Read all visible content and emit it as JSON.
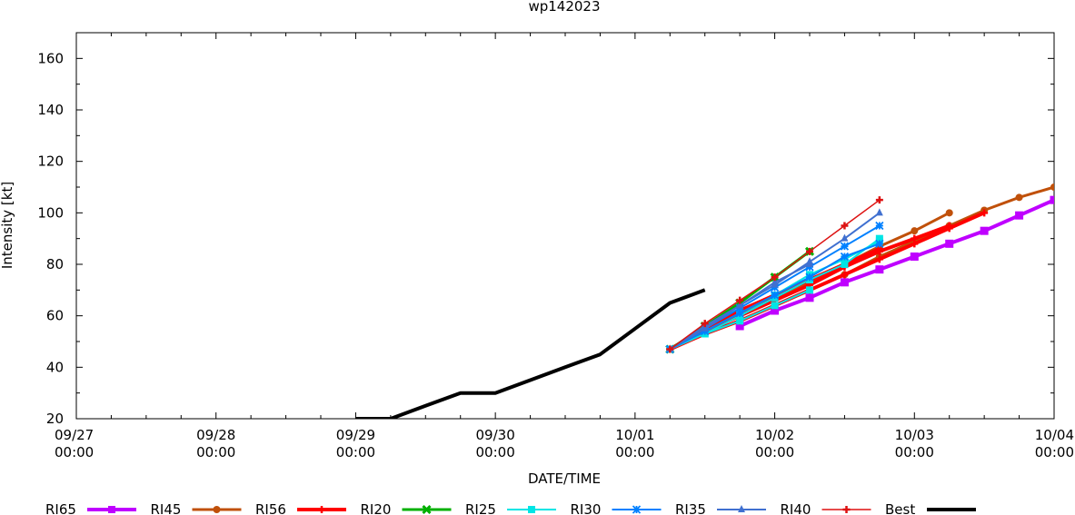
{
  "chart_data": {
    "type": "line",
    "title": "wp142023",
    "xlabel": "DATE/TIME",
    "ylabel": "Intensity [kt]",
    "x_unit": "days since 09/27 00:00",
    "xlim": [
      0,
      7
    ],
    "ylim": [
      20,
      170
    ],
    "yticks": [
      20,
      40,
      60,
      80,
      100,
      120,
      140,
      160
    ],
    "xticks": [
      {
        "x": 0,
        "date": "09/27",
        "time": "00:00"
      },
      {
        "x": 1,
        "date": "09/28",
        "time": "00:00"
      },
      {
        "x": 2,
        "date": "09/29",
        "time": "00:00"
      },
      {
        "x": 3,
        "date": "09/30",
        "time": "00:00"
      },
      {
        "x": 4,
        "date": "10/01",
        "time": "00:00"
      },
      {
        "x": 5,
        "date": "10/02",
        "time": "00:00"
      },
      {
        "x": 6,
        "date": "10/03",
        "time": "00:00"
      },
      {
        "x": 7,
        "date": "10/04",
        "time": "00:00"
      }
    ],
    "grid": false,
    "legend_position": "bottom",
    "series": [
      {
        "name": "RI65",
        "color": "#bf00ff",
        "marker": "square",
        "width": 4,
        "lines": [
          [
            [
              4.75,
              56
            ],
            [
              5,
              62
            ],
            [
              5.25,
              67
            ],
            [
              5.5,
              73
            ],
            [
              5.75,
              78
            ],
            [
              6,
              83
            ],
            [
              6.25,
              88
            ],
            [
              6.5,
              93
            ],
            [
              6.75,
              99
            ],
            [
              7,
              105
            ],
            [
              7.25,
              110
            ]
          ]
        ]
      },
      {
        "name": "RI45",
        "color": "#c0500a",
        "marker": "circle",
        "width": 3,
        "lines": [
          [
            [
              4.25,
              47
            ],
            [
              4.5,
              53
            ],
            [
              4.75,
              58
            ],
            [
              5,
              64
            ],
            [
              5.25,
              70
            ],
            [
              5.5,
              76
            ],
            [
              5.75,
              83
            ],
            [
              6,
              89
            ],
            [
              6.25,
              95
            ],
            [
              6.5,
              101
            ],
            [
              6.75,
              106
            ],
            [
              7,
              110
            ]
          ],
          [
            [
              4.25,
              47
            ],
            [
              4.5,
              54
            ],
            [
              4.75,
              60
            ],
            [
              5,
              67
            ],
            [
              5.25,
              73
            ],
            [
              5.5,
              80
            ],
            [
              5.75,
              87
            ],
            [
              6,
              93
            ],
            [
              6.25,
              100
            ]
          ]
        ]
      },
      {
        "name": "RI56",
        "color": "#ff0000",
        "marker": "plus",
        "width": 4,
        "lines": [
          [
            [
              4.25,
              47
            ],
            [
              4.5,
              53
            ],
            [
              4.75,
              58
            ],
            [
              5,
              64
            ],
            [
              5.25,
              70
            ],
            [
              5.5,
              76
            ],
            [
              5.75,
              82
            ],
            [
              6,
              88
            ],
            [
              6.25,
              94
            ],
            [
              6.5,
              100
            ]
          ],
          [
            [
              4.25,
              47
            ],
            [
              4.5,
              54
            ],
            [
              4.75,
              60
            ],
            [
              5,
              66
            ],
            [
              5.25,
              72
            ],
            [
              5.5,
              79
            ],
            [
              5.75,
              85
            ],
            [
              6,
              90
            ],
            [
              6.25,
              95
            ]
          ],
          [
            [
              4.25,
              47
            ],
            [
              4.5,
              55
            ],
            [
              4.75,
              62
            ],
            [
              5,
              68
            ],
            [
              5.25,
              74
            ],
            [
              5.5,
              80
            ],
            [
              5.75,
              86
            ]
          ]
        ]
      },
      {
        "name": "RI20",
        "color": "#00b000",
        "marker": "cross",
        "width": 3,
        "lines": [
          [
            [
              4.25,
              47
            ],
            [
              4.5,
              56
            ],
            [
              4.75,
              65
            ],
            [
              5,
              75
            ],
            [
              5.25,
              85
            ]
          ]
        ]
      },
      {
        "name": "RI25",
        "color": "#00e5e5",
        "marker": "square",
        "width": 2,
        "lines": [
          [
            [
              4.25,
              47
            ],
            [
              4.5,
              53
            ],
            [
              4.75,
              58
            ],
            [
              5,
              64
            ],
            [
              5.25,
              70
            ]
          ],
          [
            [
              4.5,
              53
            ],
            [
              4.75,
              60
            ],
            [
              5,
              67
            ],
            [
              5.25,
              74
            ],
            [
              5.5,
              80
            ],
            [
              5.75,
              90
            ]
          ],
          [
            [
              4.5,
              54
            ],
            [
              4.75,
              61
            ],
            [
              5,
              68
            ],
            [
              5.25,
              76
            ],
            [
              5.5,
              82
            ],
            [
              5.75,
              89
            ]
          ]
        ]
      },
      {
        "name": "RI30",
        "color": "#0080ff",
        "marker": "star",
        "width": 2,
        "lines": [
          [
            [
              4.25,
              47
            ],
            [
              4.5,
              54
            ],
            [
              4.75,
              61
            ],
            [
              5,
              68
            ],
            [
              5.25,
              75
            ],
            [
              5.5,
              83
            ],
            [
              5.75,
              88
            ]
          ],
          [
            [
              4.25,
              47
            ],
            [
              4.5,
              55
            ],
            [
              4.75,
              63
            ],
            [
              5,
              71
            ],
            [
              5.25,
              79
            ],
            [
              5.5,
              87
            ],
            [
              5.75,
              95
            ]
          ]
        ]
      },
      {
        "name": "RI35",
        "color": "#4070d0",
        "marker": "triangle",
        "width": 2,
        "lines": [
          [
            [
              4.25,
              47
            ],
            [
              4.5,
              55
            ],
            [
              4.75,
              64
            ],
            [
              5,
              72
            ],
            [
              5.25,
              81
            ],
            [
              5.5,
              90
            ],
            [
              5.75,
              100
            ]
          ],
          [
            [
              4.25,
              47
            ],
            [
              4.5,
              56
            ],
            [
              4.75,
              64
            ],
            [
              5,
              73
            ],
            [
              5.25,
              80
            ]
          ]
        ]
      },
      {
        "name": "RI40",
        "color": "#dd1111",
        "marker": "plus",
        "width": 1.5,
        "lines": [
          [
            [
              4.25,
              47
            ],
            [
              4.5,
              57
            ],
            [
              4.75,
              66
            ],
            [
              5,
              75
            ],
            [
              5.25,
              85
            ],
            [
              5.5,
              95
            ],
            [
              5.75,
              105
            ]
          ]
        ]
      },
      {
        "name": "Best",
        "color": "#000000",
        "marker": "none",
        "width": 4,
        "lines": [
          [
            [
              2,
              20
            ],
            [
              2.25,
              20
            ],
            [
              2.5,
              25
            ],
            [
              2.75,
              30
            ],
            [
              3,
              30
            ],
            [
              3.25,
              35
            ],
            [
              3.5,
              40
            ],
            [
              3.75,
              45
            ],
            [
              4,
              55
            ],
            [
              4.25,
              65
            ],
            [
              4.5,
              70
            ]
          ]
        ]
      }
    ]
  }
}
